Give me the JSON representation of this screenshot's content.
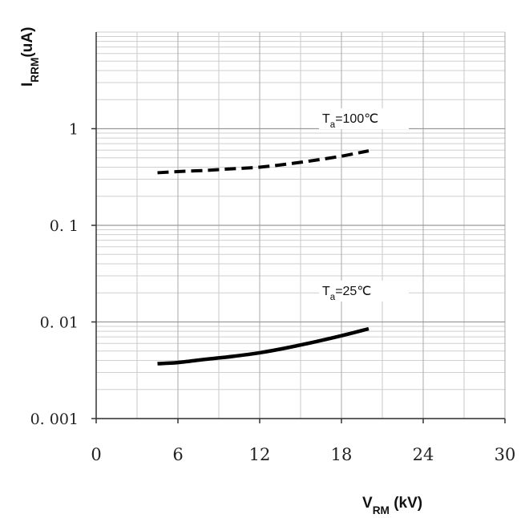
{
  "chart_data": {
    "type": "line",
    "title": "",
    "xlabel": "VRM (kV)",
    "ylabel": "IRRM(uA)",
    "xlabel_parts": [
      {
        "text": "V",
        "sub": false
      },
      {
        "text": "RM",
        "sub": true
      },
      {
        "text": " (kV)",
        "sub": false
      }
    ],
    "ylabel_parts": [
      {
        "text": "I",
        "sub": false
      },
      {
        "text": "RRM",
        "sub": true
      },
      {
        "text": "(uA)",
        "sub": false
      }
    ],
    "xlim": [
      0,
      30
    ],
    "ylim": [
      0.001,
      10
    ],
    "y_scale": "log",
    "grid": true,
    "x_ticks": [
      0,
      6,
      12,
      18,
      24,
      30
    ],
    "x_tick_labels": [
      "0",
      "6",
      "12",
      "18",
      "24",
      "30"
    ],
    "y_ticks": [
      0.001,
      0.01,
      0.1,
      1
    ],
    "y_tick_labels": [
      "0. 001",
      "0. 01",
      "0. 1",
      "1"
    ],
    "series": [
      {
        "name": "Ta=100℃",
        "label_parts": [
          {
            "text": "T",
            "sub": false
          },
          {
            "text": "a",
            "sub": true
          },
          {
            "text": "=100℃",
            "sub": false
          }
        ],
        "style": "dashed",
        "color": "#000000",
        "x": [
          4.5,
          6,
          8,
          10,
          12,
          14,
          16,
          18,
          20
        ],
        "y": [
          0.35,
          0.36,
          0.37,
          0.385,
          0.4,
          0.43,
          0.47,
          0.52,
          0.59
        ]
      },
      {
        "name": "Ta=25℃",
        "label_parts": [
          {
            "text": "T",
            "sub": false
          },
          {
            "text": "a",
            "sub": true
          },
          {
            "text": "=25℃",
            "sub": false
          }
        ],
        "style": "solid",
        "color": "#000000",
        "x": [
          4.5,
          6,
          8,
          10,
          12,
          14,
          16,
          18,
          20
        ],
        "y": [
          0.0037,
          0.0038,
          0.0041,
          0.0044,
          0.0048,
          0.0054,
          0.0062,
          0.0072,
          0.0085
        ]
      }
    ]
  }
}
